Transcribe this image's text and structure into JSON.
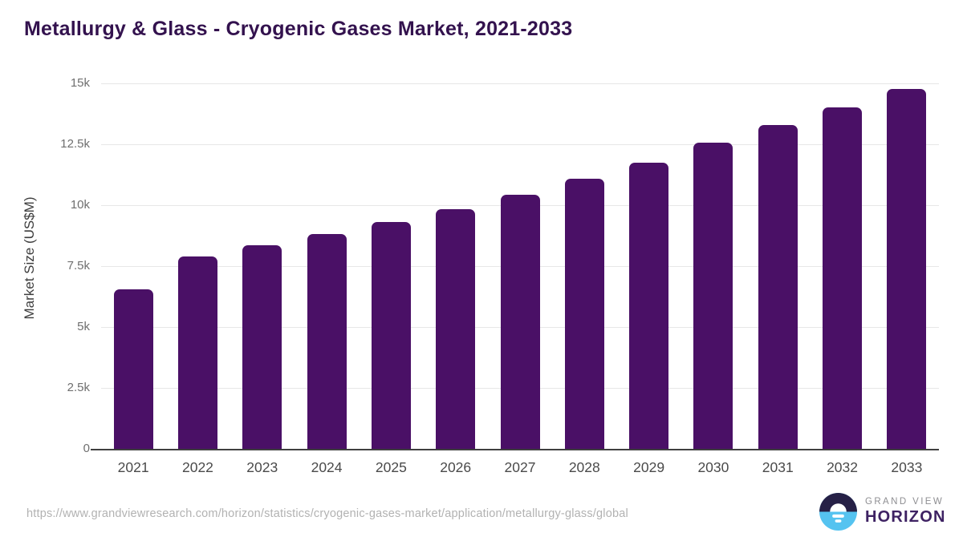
{
  "chart_data": {
    "type": "bar",
    "title": "Metallurgy & Glass - Cryogenic Gases Market, 2021-2033",
    "xlabel": "",
    "ylabel": "Market Size (US$M)",
    "categories": [
      "2021",
      "2022",
      "2023",
      "2024",
      "2025",
      "2026",
      "2027",
      "2028",
      "2029",
      "2030",
      "2031",
      "2032",
      "2033"
    ],
    "values": [
      6550,
      7900,
      8340,
      8800,
      9300,
      9850,
      10420,
      11100,
      11750,
      12560,
      13280,
      14020,
      14760
    ],
    "ylim": [
      0,
      15000
    ],
    "yticks": [
      {
        "value": 0,
        "label": "0"
      },
      {
        "value": 2500,
        "label": "2.5k"
      },
      {
        "value": 5000,
        "label": "5k"
      },
      {
        "value": 7500,
        "label": "7.5k"
      },
      {
        "value": 10000,
        "label": "10k"
      },
      {
        "value": 12500,
        "label": "12.5k"
      },
      {
        "value": 15000,
        "label": "15k"
      }
    ],
    "grid": true,
    "legend": "none",
    "bar_color": "#4a1066"
  },
  "colors": {
    "title_text": "#33124e",
    "bar": "#4a1066",
    "gridline": "#e7e7e7",
    "axis_line": "#3f3f3f",
    "logo_navy": "#262046",
    "logo_blue": "#55c3f0",
    "brand_purple": "#3e2263"
  },
  "footer": {
    "source_url": "https://www.grandviewresearch.com/horizon/statistics/cryogenic-gases-market/application/metallurgy-glass/global",
    "brand_top": "GRAND VIEW",
    "brand_bottom": "HORIZON"
  }
}
